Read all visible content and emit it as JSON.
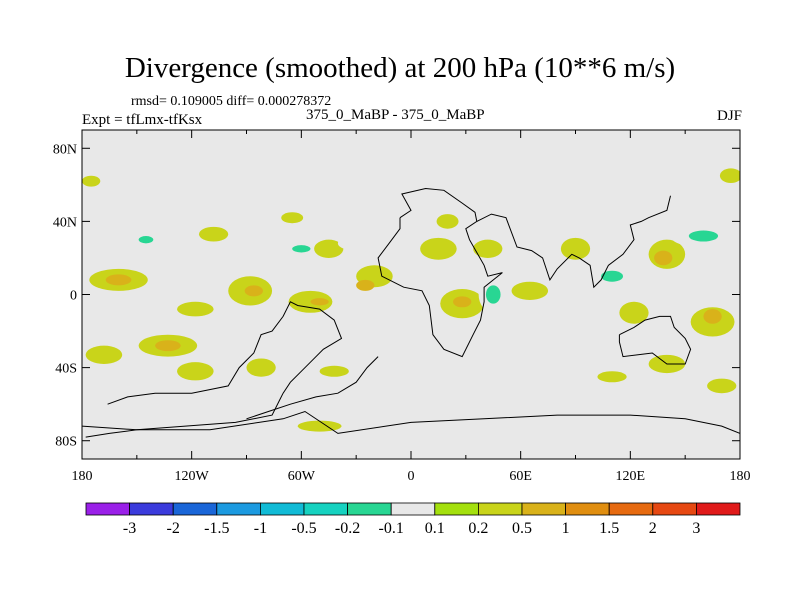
{
  "chart_data": {
    "type": "contour-map",
    "title": "Divergence (smoothed) at 200 hPa (10**6 m/s)",
    "stats": "rmsd= 0.109005 diff= 0.000278372",
    "experiment": "Expt = tfLmx-tfKsx",
    "case": "375_0_MaBP - 375_0_MaBP",
    "season": "DJF",
    "xlim": [
      -180,
      180
    ],
    "ylim": [
      -90,
      90
    ],
    "x_ticks": [
      {
        "value": -180,
        "label": "180"
      },
      {
        "value": -120,
        "label": "120W"
      },
      {
        "value": -60,
        "label": "60W"
      },
      {
        "value": 0,
        "label": "0"
      },
      {
        "value": 60,
        "label": "60E"
      },
      {
        "value": 120,
        "label": "120E"
      },
      {
        "value": 180,
        "label": "180"
      }
    ],
    "y_ticks": [
      {
        "value": 80,
        "label": "80N"
      },
      {
        "value": 40,
        "label": "40N"
      },
      {
        "value": 0,
        "label": "0"
      },
      {
        "value": -40,
        "label": "40S"
      },
      {
        "value": -80,
        "label": "80S"
      }
    ],
    "colorbar": {
      "colors": [
        "#9a20e8",
        "#3b3bdc",
        "#1a66d8",
        "#1c9ae0",
        "#11bbd6",
        "#16d2c0",
        "#28d693",
        "#e8e8e8",
        "#a4e00e",
        "#c9d41a",
        "#d9b21a",
        "#e08e10",
        "#e66a10",
        "#e64812",
        "#e01a1a"
      ],
      "labels": [
        "-3",
        "-2",
        "-1.5",
        "-1",
        "-0.5",
        "-0.2",
        "-0.1",
        "0.1",
        "0.2",
        "0.5",
        "1",
        "1.5",
        "2",
        "3"
      ]
    },
    "blobs": [
      {
        "lon": -168,
        "lat": -33,
        "rx": 10,
        "ry": 5,
        "level": 0.2
      },
      {
        "lon": -133,
        "lat": -28,
        "rx": 16,
        "ry": 6,
        "level": 0.2
      },
      {
        "lon": -133,
        "lat": -28,
        "rx": 7,
        "ry": 3,
        "level": 0.5
      },
      {
        "lon": -156,
        "lat": -12,
        "rx": 12,
        "ry": 4,
        "level": -0.1
      },
      {
        "lon": -118,
        "lat": -8,
        "rx": 10,
        "ry": 4,
        "level": 0.2
      },
      {
        "lon": -132,
        "lat": 12,
        "rx": 10,
        "ry": 6,
        "level": -0.1
      },
      {
        "lon": -148,
        "lat": 28,
        "rx": 12,
        "ry": 5,
        "level": -0.1
      },
      {
        "lon": -145,
        "lat": 30,
        "rx": 4,
        "ry": 2,
        "level": -0.2
      },
      {
        "lon": -160,
        "lat": 8,
        "rx": 16,
        "ry": 6,
        "level": 0.2
      },
      {
        "lon": -160,
        "lat": 8,
        "rx": 7,
        "ry": 3,
        "level": 0.5
      },
      {
        "lon": -108,
        "lat": 33,
        "rx": 8,
        "ry": 4,
        "level": 0.2
      },
      {
        "lon": -95,
        "lat": 22,
        "rx": 10,
        "ry": 5,
        "level": -0.1
      },
      {
        "lon": -88,
        "lat": 2,
        "rx": 12,
        "ry": 8,
        "level": 0.2
      },
      {
        "lon": -86,
        "lat": 2,
        "rx": 5,
        "ry": 3,
        "level": 0.5
      },
      {
        "lon": -75,
        "lat": -28,
        "rx": 8,
        "ry": 4,
        "level": -0.1
      },
      {
        "lon": -65,
        "lat": 25,
        "rx": 14,
        "ry": 7,
        "level": -0.1
      },
      {
        "lon": -60,
        "lat": 25,
        "rx": 5,
        "ry": 2,
        "level": -0.2
      },
      {
        "lon": -45,
        "lat": 25,
        "rx": 8,
        "ry": 5,
        "level": 0.2
      },
      {
        "lon": -55,
        "lat": -4,
        "rx": 12,
        "ry": 6,
        "level": 0.2
      },
      {
        "lon": -50,
        "lat": -4,
        "rx": 5,
        "ry": 2,
        "level": 0.5
      },
      {
        "lon": -30,
        "lat": 28,
        "rx": 10,
        "ry": 4,
        "level": -0.1
      },
      {
        "lon": -20,
        "lat": 10,
        "rx": 10,
        "ry": 6,
        "level": 0.2
      },
      {
        "lon": -25,
        "lat": 5,
        "rx": 5,
        "ry": 3,
        "level": 0.5
      },
      {
        "lon": -22,
        "lat": -22,
        "rx": 10,
        "ry": 5,
        "level": -0.1
      },
      {
        "lon": -42,
        "lat": -42,
        "rx": 8,
        "ry": 3,
        "level": 0.2
      },
      {
        "lon": -118,
        "lat": -42,
        "rx": 10,
        "ry": 5,
        "level": 0.2
      },
      {
        "lon": -82,
        "lat": -40,
        "rx": 8,
        "ry": 5,
        "level": 0.2
      },
      {
        "lon": -85,
        "lat": -58,
        "rx": 8,
        "ry": 4,
        "level": -0.1
      },
      {
        "lon": -148,
        "lat": -70,
        "rx": 12,
        "ry": 4,
        "level": -0.1
      },
      {
        "lon": -95,
        "lat": -70,
        "rx": 8,
        "ry": 3,
        "level": -0.1
      },
      {
        "lon": -10,
        "lat": -72,
        "rx": 8,
        "ry": 3,
        "level": -0.1
      },
      {
        "lon": -50,
        "lat": -72,
        "rx": 12,
        "ry": 3,
        "level": 0.2
      },
      {
        "lon": 12,
        "lat": -20,
        "rx": 10,
        "ry": 6,
        "level": -0.1
      },
      {
        "lon": 28,
        "lat": -5,
        "rx": 12,
        "ry": 8,
        "level": 0.2
      },
      {
        "lon": 28,
        "lat": -4,
        "rx": 5,
        "ry": 3,
        "level": 0.5
      },
      {
        "lon": 30,
        "lat": 18,
        "rx": 12,
        "ry": 6,
        "level": -0.1
      },
      {
        "lon": 15,
        "lat": 25,
        "rx": 10,
        "ry": 6,
        "level": 0.2
      },
      {
        "lon": 45,
        "lat": 0,
        "rx": 8,
        "ry": 10,
        "level": -0.1
      },
      {
        "lon": 45,
        "lat": 0,
        "rx": 4,
        "ry": 5,
        "level": -0.2
      },
      {
        "lon": 42,
        "lat": 25,
        "rx": 8,
        "ry": 5,
        "level": 0.2
      },
      {
        "lon": 65,
        "lat": 2,
        "rx": 10,
        "ry": 5,
        "level": 0.2
      },
      {
        "lon": 65,
        "lat": 40,
        "rx": 8,
        "ry": 3,
        "level": -0.1
      },
      {
        "lon": 85,
        "lat": -15,
        "rx": 10,
        "ry": 5,
        "level": -0.1
      },
      {
        "lon": 110,
        "lat": 10,
        "rx": 12,
        "ry": 7,
        "level": -0.1
      },
      {
        "lon": 110,
        "lat": 10,
        "rx": 6,
        "ry": 3,
        "level": -0.2
      },
      {
        "lon": 122,
        "lat": -10,
        "rx": 8,
        "ry": 6,
        "level": 0.2
      },
      {
        "lon": 90,
        "lat": 25,
        "rx": 8,
        "ry": 6,
        "level": 0.2
      },
      {
        "lon": 80,
        "lat": 75,
        "rx": 14,
        "ry": 3,
        "level": -0.1
      },
      {
        "lon": 140,
        "lat": 22,
        "rx": 10,
        "ry": 8,
        "level": 0.2
      },
      {
        "lon": 138,
        "lat": 20,
        "rx": 5,
        "ry": 4,
        "level": 0.5
      },
      {
        "lon": 158,
        "lat": 32,
        "rx": 16,
        "ry": 6,
        "level": -0.1
      },
      {
        "lon": 160,
        "lat": 32,
        "rx": 8,
        "ry": 3,
        "level": -0.2
      },
      {
        "lon": 165,
        "lat": -15,
        "rx": 12,
        "ry": 8,
        "level": 0.2
      },
      {
        "lon": 165,
        "lat": -12,
        "rx": 5,
        "ry": 4,
        "level": 0.5
      },
      {
        "lon": 170,
        "lat": 10,
        "rx": 10,
        "ry": 4,
        "level": -0.1
      },
      {
        "lon": 140,
        "lat": -38,
        "rx": 10,
        "ry": 5,
        "level": 0.2
      },
      {
        "lon": 155,
        "lat": -55,
        "rx": 8,
        "ry": 4,
        "level": -0.1
      },
      {
        "lon": 170,
        "lat": -50,
        "rx": 8,
        "ry": 4,
        "level": 0.2
      },
      {
        "lon": 130,
        "lat": -70,
        "rx": 8,
        "ry": 3,
        "level": -0.1
      },
      {
        "lon": 175,
        "lat": 65,
        "rx": 6,
        "ry": 4,
        "level": 0.2
      },
      {
        "lon": -175,
        "lat": 62,
        "rx": 5,
        "ry": 3,
        "level": 0.2
      },
      {
        "lon": 65,
        "lat": -45,
        "rx": 8,
        "ry": 4,
        "level": -0.1
      },
      {
        "lon": 110,
        "lat": -45,
        "rx": 8,
        "ry": 3,
        "level": 0.2
      },
      {
        "lon": 20,
        "lat": 40,
        "rx": 6,
        "ry": 4,
        "level": 0.2
      },
      {
        "lon": -170,
        "lat": 28,
        "rx": 6,
        "ry": 5,
        "level": -0.1
      },
      {
        "lon": -65,
        "lat": 42,
        "rx": 6,
        "ry": 3,
        "level": 0.2
      }
    ],
    "coastlines": [
      {
        "name": "Americas",
        "points": [
          [
            -166,
            -60
          ],
          [
            -155,
            -56
          ],
          [
            -140,
            -54
          ],
          [
            -120,
            -54
          ],
          [
            -100,
            -50
          ],
          [
            -94,
            -40
          ],
          [
            -86,
            -32
          ],
          [
            -82,
            -22
          ],
          [
            -76,
            -20
          ],
          [
            -70,
            -12
          ],
          [
            -66,
            -4
          ],
          [
            -62,
            -6
          ],
          [
            -50,
            -8
          ],
          [
            -42,
            -14
          ],
          [
            -38,
            -24
          ],
          [
            -48,
            -30
          ],
          [
            -54,
            -36
          ],
          [
            -60,
            -42
          ],
          [
            -66,
            -48
          ],
          [
            -70,
            -54
          ],
          [
            -72,
            -58
          ],
          [
            -76,
            -66
          ],
          [
            -96,
            -70
          ],
          [
            -150,
            -74
          ],
          [
            -165,
            -76
          ],
          [
            -178,
            -78
          ]
        ]
      },
      {
        "name": "North Atlantic coast",
        "points": [
          [
            -18,
            -34
          ],
          [
            -24,
            -40
          ],
          [
            -30,
            -48
          ],
          [
            -40,
            -54
          ],
          [
            -52,
            -56
          ],
          [
            -66,
            -60
          ],
          [
            -78,
            -64
          ],
          [
            -90,
            -68
          ]
        ]
      },
      {
        "name": "Eurasia-Africa",
        "points": [
          [
            -6,
            42
          ],
          [
            0,
            46
          ],
          [
            -5,
            55
          ],
          [
            8,
            58
          ],
          [
            18,
            57
          ],
          [
            28,
            50
          ],
          [
            35,
            45
          ],
          [
            36,
            40
          ],
          [
            30,
            36
          ],
          [
            32,
            30
          ],
          [
            40,
            16
          ],
          [
            42,
            10
          ],
          [
            50,
            12
          ],
          [
            40,
            4
          ],
          [
            40,
            -4
          ],
          [
            38,
            -14
          ],
          [
            34,
            -22
          ],
          [
            28,
            -34
          ],
          [
            18,
            -30
          ],
          [
            12,
            -22
          ],
          [
            10,
            -6
          ],
          [
            6,
            2
          ],
          [
            -4,
            4
          ],
          [
            -16,
            10
          ],
          [
            -18,
            20
          ],
          [
            -12,
            28
          ],
          [
            -6,
            36
          ],
          [
            -6,
            42
          ]
        ]
      },
      {
        "name": "Asia",
        "points": [
          [
            36,
            40
          ],
          [
            44,
            44
          ],
          [
            52,
            42
          ],
          [
            58,
            26
          ],
          [
            66,
            24
          ],
          [
            72,
            20
          ],
          [
            76,
            8
          ],
          [
            80,
            14
          ],
          [
            88,
            22
          ],
          [
            92,
            20
          ],
          [
            98,
            16
          ],
          [
            100,
            4
          ],
          [
            104,
            8
          ],
          [
            108,
            16
          ],
          [
            116,
            22
          ],
          [
            122,
            30
          ],
          [
            120,
            38
          ],
          [
            126,
            40
          ],
          [
            130,
            42
          ],
          [
            140,
            46
          ],
          [
            142,
            54
          ]
        ]
      },
      {
        "name": "Australia",
        "points": [
          [
            114,
            -22
          ],
          [
            122,
            -18
          ],
          [
            128,
            -14
          ],
          [
            136,
            -12
          ],
          [
            142,
            -12
          ],
          [
            144,
            -18
          ],
          [
            150,
            -24
          ],
          [
            153,
            -30
          ],
          [
            150,
            -38
          ],
          [
            140,
            -38
          ],
          [
            132,
            -32
          ],
          [
            116,
            -34
          ],
          [
            114,
            -26
          ],
          [
            114,
            -22
          ]
        ]
      },
      {
        "name": "Antarctica",
        "points": [
          [
            -180,
            -72
          ],
          [
            -150,
            -74
          ],
          [
            -110,
            -74
          ],
          [
            -70,
            -68
          ],
          [
            -58,
            -64
          ],
          [
            -40,
            -76
          ],
          [
            0,
            -70
          ],
          [
            40,
            -68
          ],
          [
            80,
            -66
          ],
          [
            120,
            -66
          ],
          [
            150,
            -68
          ],
          [
            170,
            -72
          ],
          [
            180,
            -76
          ]
        ]
      }
    ]
  }
}
